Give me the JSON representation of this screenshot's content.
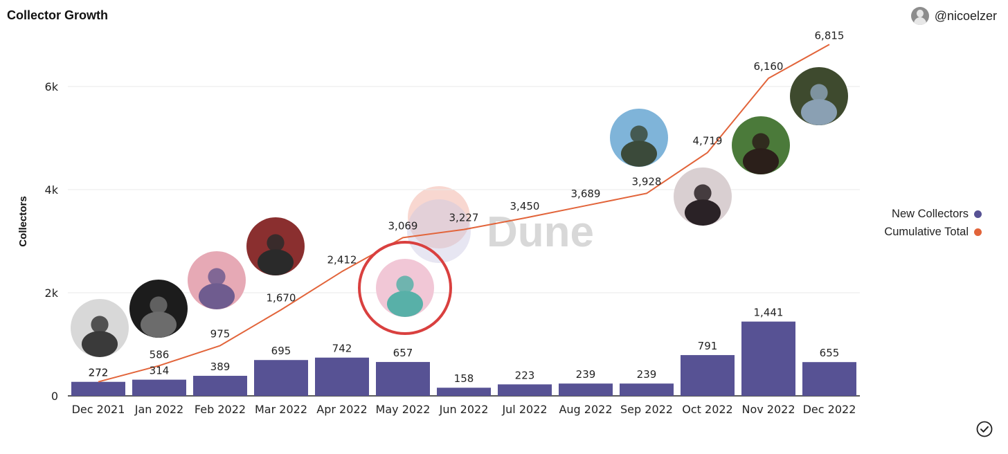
{
  "header": {
    "title": "Collector Growth",
    "author": "@nicoelzer"
  },
  "colors": {
    "bars": "#575294",
    "line": "#e2643a",
    "grid": "#e9e9e9",
    "axis": "#222222"
  },
  "watermark": "Dune",
  "legend": [
    {
      "label": "New Collectors",
      "color": "#575294"
    },
    {
      "label": "Cumulative Total",
      "color": "#e2643a"
    }
  ],
  "chart_data": {
    "type": "bar+line",
    "ylabel": "Collectors",
    "ylim": [
      0,
      7000
    ],
    "yticks": [
      0,
      2000,
      4000,
      6000
    ],
    "ytick_labels": [
      "0",
      "2k",
      "4k",
      "6k"
    ],
    "categories": [
      "Dec 2021",
      "Jan 2022",
      "Feb 2022",
      "Mar 2022",
      "Apr 2022",
      "May 2022",
      "Jun 2022",
      "Jul 2022",
      "Aug 2022",
      "Sep 2022",
      "Oct 2022",
      "Nov 2022",
      "Dec 2022"
    ],
    "series": [
      {
        "name": "New Collectors",
        "type": "bar",
        "values": [
          272,
          314,
          389,
          695,
          742,
          657,
          158,
          223,
          239,
          239,
          791,
          1441,
          655
        ],
        "labels": [
          "272",
          "314",
          "389",
          "695",
          "742",
          "657",
          "158",
          "223",
          "239",
          "239",
          "791",
          "1,441",
          "655"
        ]
      },
      {
        "name": "Cumulative Total",
        "type": "line",
        "values": [
          272,
          586,
          975,
          1670,
          2412,
          3069,
          3227,
          3450,
          3689,
          3928,
          4719,
          6160,
          6815
        ],
        "labels": [
          "272",
          "586",
          "975",
          "1,670",
          "2,412",
          "3,069",
          "3,227",
          "3,450",
          "3,689",
          "3,928",
          "4,719",
          "6,160",
          "6,815"
        ]
      }
    ],
    "grid": true,
    "legend_position": "right"
  },
  "photos": [
    {
      "name": "photo-curly-hair-portrait",
      "icon": "portrait-photo"
    },
    {
      "name": "photo-dark-hair-portrait",
      "icon": "portrait-photo"
    },
    {
      "name": "photo-bicycle-illustration",
      "icon": "illustration-photo"
    },
    {
      "name": "photo-sunglasses-portrait",
      "icon": "portrait-photo"
    },
    {
      "name": "photo-cartoon-artwork",
      "icon": "illustration-photo",
      "highlighted": true
    },
    {
      "name": "photo-flannel-portrait",
      "icon": "portrait-photo"
    },
    {
      "name": "photo-pink-makeup-portrait",
      "icon": "portrait-photo"
    },
    {
      "name": "photo-braids-portrait",
      "icon": "portrait-photo"
    },
    {
      "name": "photo-duo-outdoor",
      "icon": "portrait-photo"
    }
  ]
}
